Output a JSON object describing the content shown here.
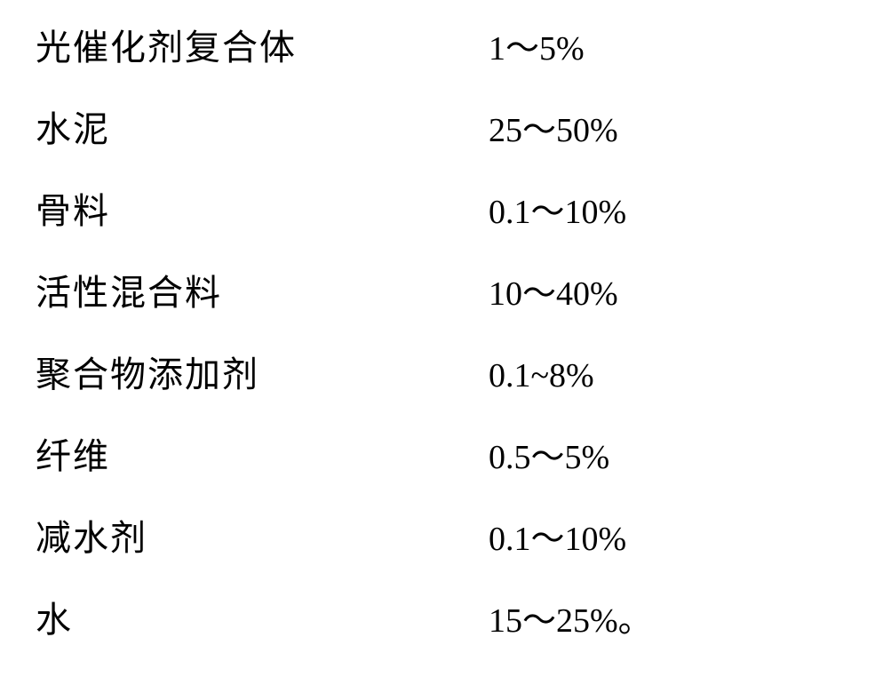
{
  "composition_table": {
    "type": "table",
    "background_color": "#ffffff",
    "text_color": "#000000",
    "label_fontsize": 40,
    "value_fontsize": 38,
    "label_font": "SimSun",
    "value_font": "Times New Roman",
    "row_spacing": 44,
    "label_column_width": 510,
    "rows": [
      {
        "label": "光催化剂复合体",
        "value": "1～5%"
      },
      {
        "label": "水泥",
        "value": "25～50%"
      },
      {
        "label": "骨料",
        "value": "0.1～10%"
      },
      {
        "label": "活性混合料",
        "value": "10～40%"
      },
      {
        "label": "聚合物添加剂",
        "value": "0.1~8%"
      },
      {
        "label": "纤维",
        "value": "0.5～5%"
      },
      {
        "label": "减水剂",
        "value": "0.1～10%"
      },
      {
        "label": "水",
        "value": "15～25%。"
      }
    ]
  }
}
